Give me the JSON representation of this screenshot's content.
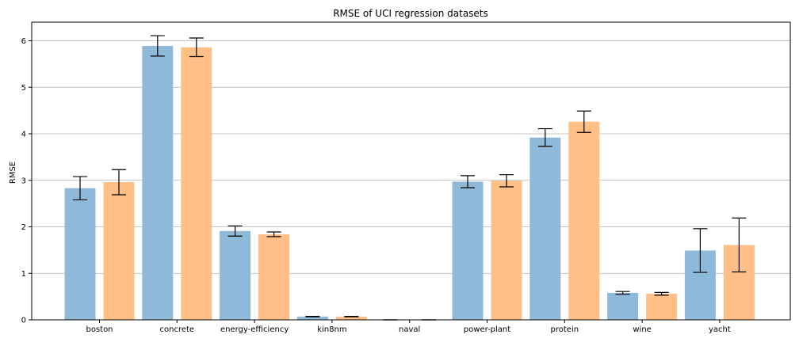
{
  "chart_data": {
    "type": "bar",
    "title": "RMSE of UCI regression datasets",
    "xlabel": "",
    "ylabel": "RMSE",
    "ylim": [
      0,
      6.4
    ],
    "yticks": [
      "0",
      "1",
      "2",
      "3",
      "4",
      "5",
      "6"
    ],
    "grid": "horizontal",
    "legend": "none",
    "categories": [
      "boston",
      "concrete",
      "energy-efficiency",
      "kin8nm",
      "naval",
      "power-plant",
      "protein",
      "wine",
      "yacht"
    ],
    "series": [
      {
        "color": "#8fb9d9",
        "values": [
          2.83,
          5.89,
          1.91,
          0.07,
          0.0,
          2.97,
          3.92,
          0.58,
          1.49
        ],
        "errors": [
          0.25,
          0.22,
          0.11,
          0.005,
          0.0005,
          0.13,
          0.19,
          0.03,
          0.47
        ]
      },
      {
        "color": "#ffbf86",
        "values": [
          2.96,
          5.86,
          1.84,
          0.07,
          0.0,
          2.99,
          4.26,
          0.56,
          1.61
        ],
        "errors": [
          0.27,
          0.2,
          0.05,
          0.005,
          0.0005,
          0.13,
          0.23,
          0.03,
          0.58
        ]
      }
    ]
  }
}
